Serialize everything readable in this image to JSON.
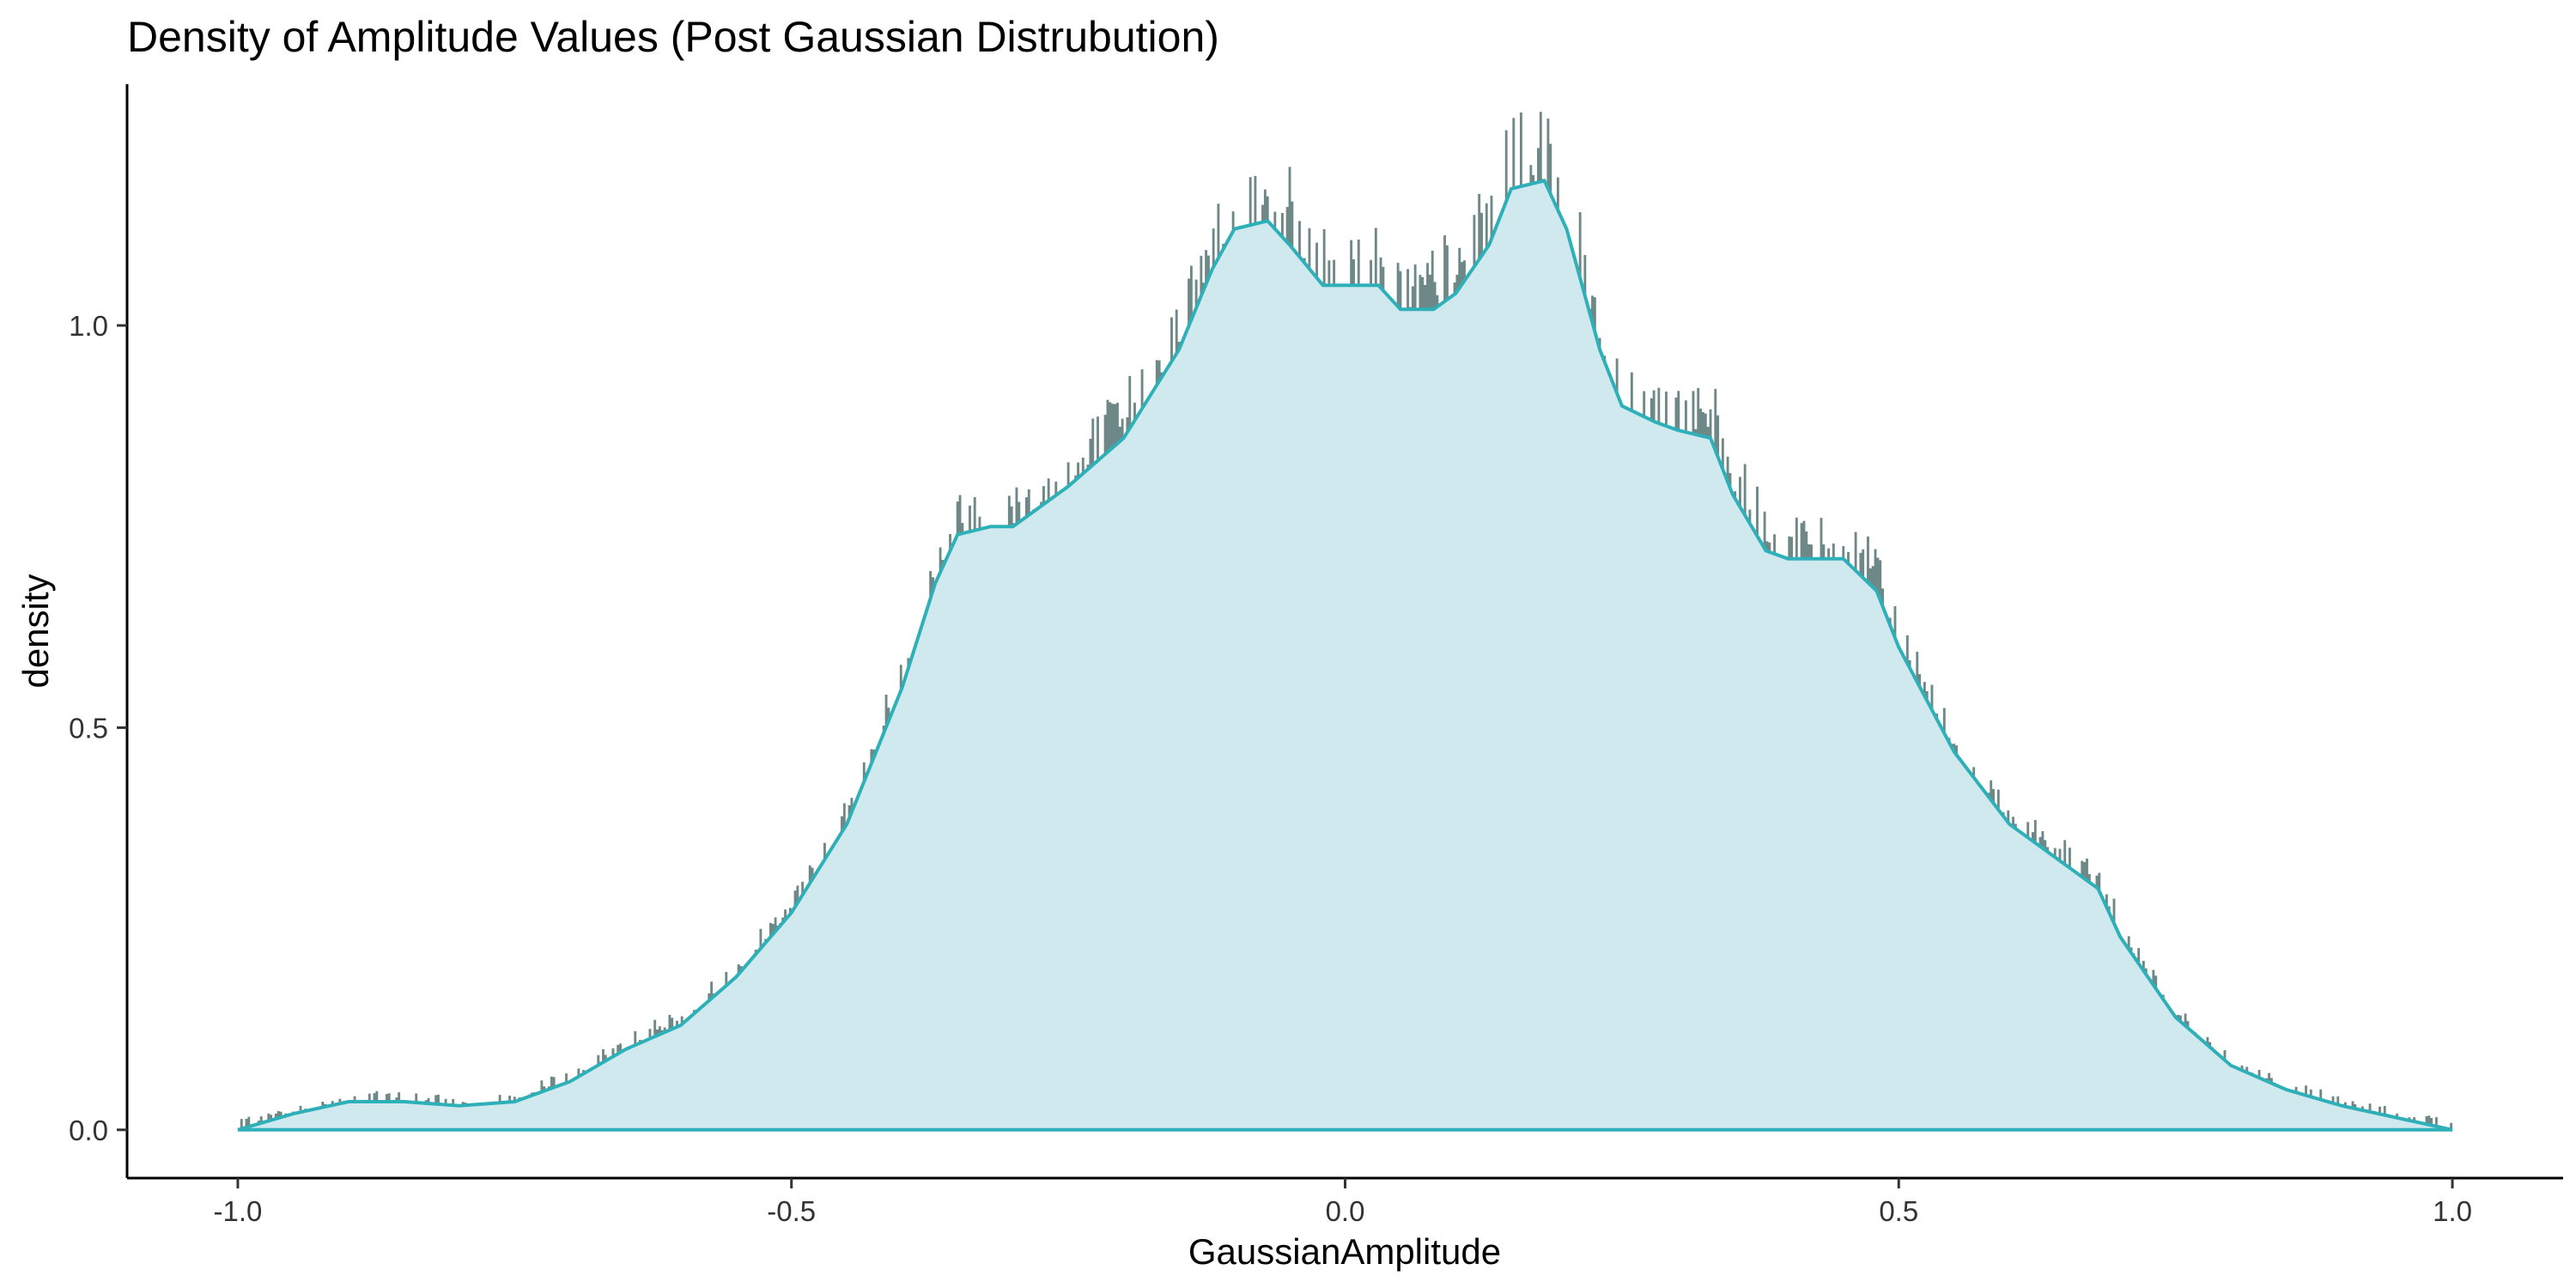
{
  "chart_data": {
    "type": "area",
    "subtype": "histogram with density overlay",
    "title": "Density of Amplitude Values (Post Gaussian Distrubution)",
    "xlabel": "GaussianAmplitude",
    "ylabel": "density",
    "xlim": [
      -1.1,
      1.1
    ],
    "ylim": [
      -0.06,
      1.3
    ],
    "x_ticks": [
      -1.0,
      -0.5,
      0.0,
      0.5,
      1.0
    ],
    "x_tick_labels": [
      "-1.0",
      "-0.5",
      "0.0",
      "0.5",
      "1.0"
    ],
    "y_ticks": [
      0.0,
      0.5,
      1.0
    ],
    "y_tick_labels": [
      "0.0",
      "0.5",
      "1.0"
    ],
    "grid": false,
    "colors": {
      "histogram_bar": "#6e8787",
      "density_line": "#2eb0b8",
      "density_fill": "#cfe9ee",
      "axis": "#000000"
    },
    "series": [
      {
        "type": "line",
        "x": [
          -1.0,
          -0.95,
          -0.9,
          -0.85,
          -0.8,
          -0.75,
          -0.7,
          -0.65,
          -0.6,
          -0.55,
          -0.5,
          -0.45,
          -0.4,
          -0.37,
          -0.35,
          -0.32,
          -0.3,
          -0.25,
          -0.2,
          -0.15,
          -0.12,
          -0.1,
          -0.07,
          -0.05,
          -0.02,
          0.0,
          0.03,
          0.05,
          0.08,
          0.1,
          0.13,
          0.15,
          0.18,
          0.2,
          0.23,
          0.25,
          0.28,
          0.3,
          0.33,
          0.35,
          0.38,
          0.4,
          0.43,
          0.45,
          0.48,
          0.5,
          0.55,
          0.6,
          0.65,
          0.68,
          0.7,
          0.75,
          0.8,
          0.85,
          0.9,
          0.95,
          1.0
        ],
        "y": [
          0.0,
          0.02,
          0.035,
          0.035,
          0.03,
          0.035,
          0.06,
          0.1,
          0.13,
          0.19,
          0.27,
          0.38,
          0.55,
          0.68,
          0.74,
          0.75,
          0.75,
          0.8,
          0.86,
          0.97,
          1.07,
          1.12,
          1.13,
          1.1,
          1.05,
          1.05,
          1.05,
          1.02,
          1.02,
          1.04,
          1.1,
          1.17,
          1.18,
          1.12,
          0.97,
          0.9,
          0.88,
          0.87,
          0.86,
          0.79,
          0.72,
          0.71,
          0.71,
          0.71,
          0.67,
          0.6,
          0.47,
          0.38,
          0.33,
          0.3,
          0.24,
          0.14,
          0.08,
          0.05,
          0.03,
          0.015,
          0.0
        ]
      }
    ]
  }
}
